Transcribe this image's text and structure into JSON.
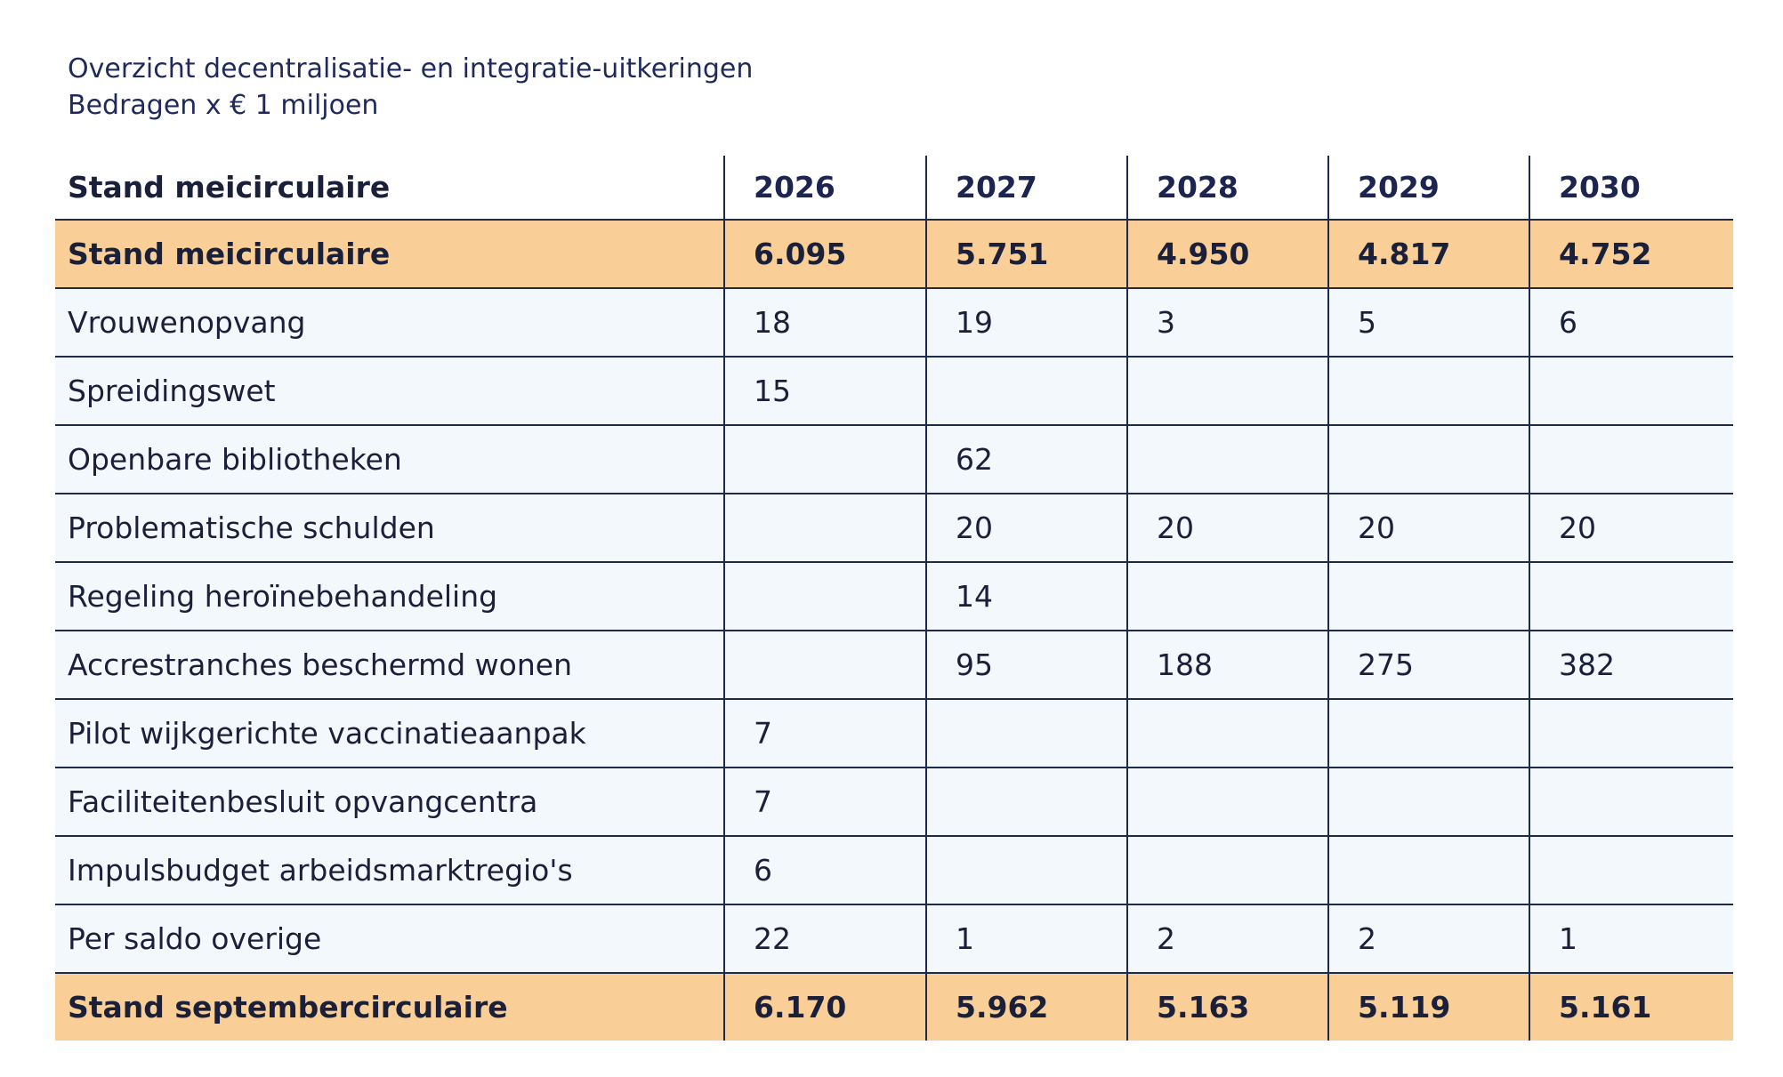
{
  "header": {
    "title": "Overzicht decentralisatie- en integratie-uitkeringen",
    "subtitle": "Bedragen x € 1 miljoen"
  },
  "table": {
    "columns": [
      "Stand meicirculaire",
      "2026",
      "2027",
      "2028",
      "2029",
      "2030"
    ],
    "rows": [
      [
        "Stand meicirculaire",
        "6.095",
        "5.751",
        "4.950",
        "4.817",
        "4.752"
      ],
      [
        "Vrouwenopvang",
        "18",
        "19",
        "3",
        "5",
        "6"
      ],
      [
        "Spreidingswet",
        "15",
        null,
        null,
        null,
        null
      ],
      [
        "Openbare bibliotheken",
        null,
        "62",
        null,
        null,
        null
      ],
      [
        "Problematische schulden",
        null,
        "20",
        "20",
        "20",
        "20"
      ],
      [
        "Regeling heroïnebehandeling",
        null,
        "14",
        null,
        null,
        null
      ],
      [
        "Accrestranches beschermd wonen",
        null,
        "95",
        "188",
        "275",
        "382"
      ],
      [
        "Pilot wijkgerichte vaccinatieaanpak",
        "7",
        null,
        null,
        null,
        null
      ],
      [
        "Faciliteitenbesluit opvangcentra",
        "7",
        null,
        null,
        null,
        null
      ],
      [
        "Impulsbudget arbeidsmarktregio's",
        "6",
        null,
        null,
        null,
        null
      ],
      [
        "Per saldo overige",
        "22",
        "1",
        "2",
        "2",
        "1"
      ],
      [
        "Stand septembercirculaire",
        "6.170",
        "5.962",
        "5.163",
        "5.119",
        "5.161"
      ]
    ]
  }
}
